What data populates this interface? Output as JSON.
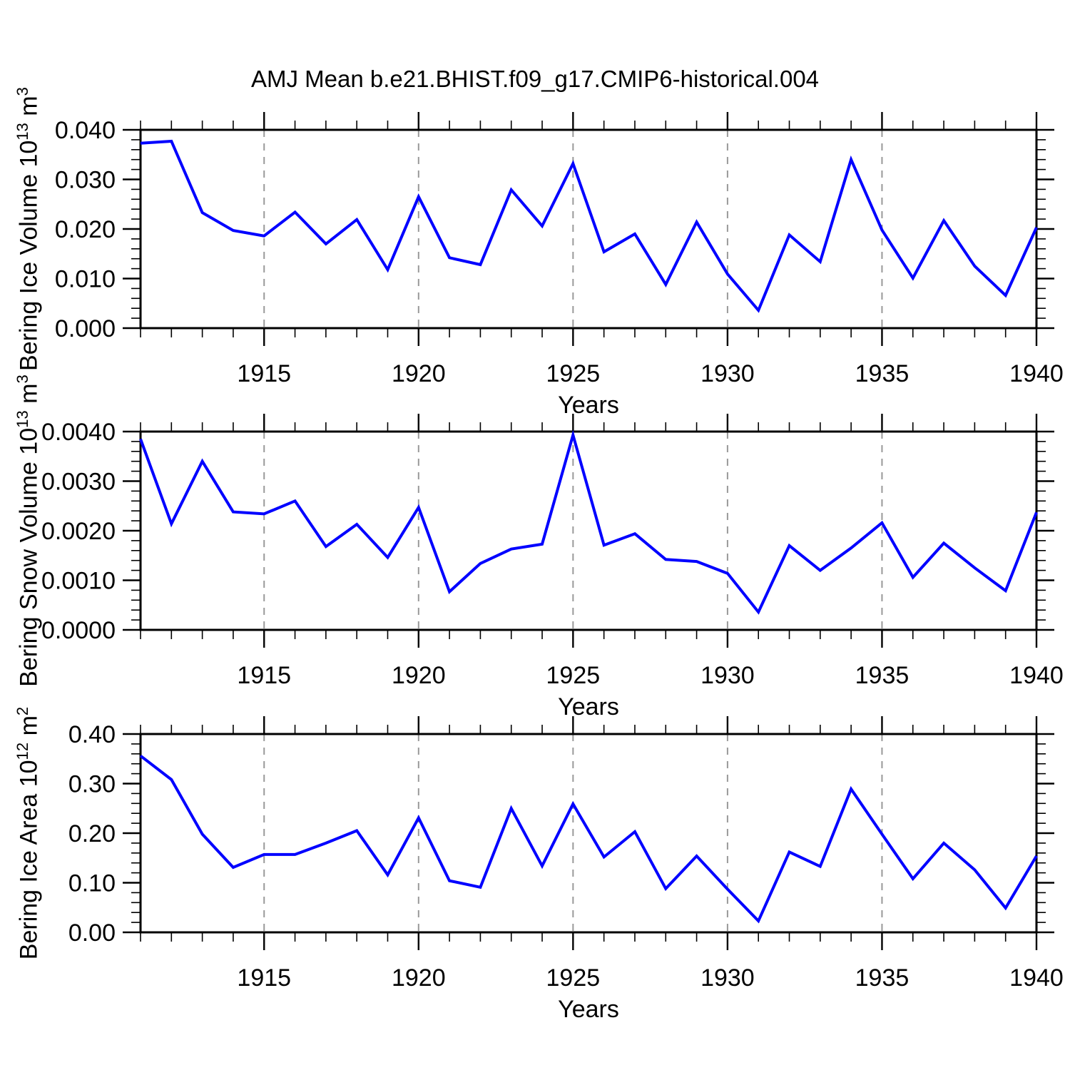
{
  "title": "AMJ Mean b.e21.BHIST.f09_g17.CMIP6-historical.004",
  "line_color": "#0000ff",
  "grid_color": "#999999",
  "chart_data": [
    {
      "type": "line",
      "ylabel": {
        "prefix": "Bering Ice Volume 10",
        "sup1": "13",
        "mid": " m",
        "sup2": "3"
      },
      "ylabel_plain": "Bering Ice Volume 10^13 m^3",
      "xlabel": "Years",
      "x": [
        1911,
        1912,
        1913,
        1914,
        1915,
        1916,
        1917,
        1918,
        1919,
        1920,
        1921,
        1922,
        1923,
        1924,
        1925,
        1926,
        1927,
        1928,
        1929,
        1930,
        1931,
        1932,
        1933,
        1934,
        1935,
        1936,
        1937,
        1938,
        1939,
        1940
      ],
      "values": [
        0.0373,
        0.0377,
        0.0233,
        0.0197,
        0.0186,
        0.0234,
        0.017,
        0.0219,
        0.0118,
        0.0265,
        0.0142,
        0.0128,
        0.0279,
        0.0206,
        0.0332,
        0.0154,
        0.019,
        0.0088,
        0.0214,
        0.0109,
        0.0036,
        0.0188,
        0.0134,
        0.034,
        0.0198,
        0.0101,
        0.0217,
        0.0125,
        0.0066,
        0.0203
      ],
      "xlim": [
        1911,
        1940
      ],
      "ylim": [
        0,
        0.04
      ],
      "y_major_step": 0.01,
      "y_minor_step": 0.002,
      "ytick_labels": [
        "0.000",
        "0.010",
        "0.020",
        "0.030",
        "0.040"
      ],
      "xticks_major": [
        1915,
        1920,
        1925,
        1930,
        1935,
        1940
      ],
      "xtick_labels": [
        "1915",
        "1920",
        "1925",
        "1930",
        "1935",
        "1940"
      ],
      "grid_years": [
        1915,
        1920,
        1925,
        1930,
        1935
      ],
      "grid_on": true,
      "legend_position": "none"
    },
    {
      "type": "line",
      "ylabel": {
        "prefix": "Bering Snow Volume 10",
        "sup1": "13",
        "mid": " m",
        "sup2": "3"
      },
      "ylabel_plain": "Bering Snow Volume 10^13 m^3",
      "xlabel": "Years",
      "x": [
        1911,
        1912,
        1913,
        1914,
        1915,
        1916,
        1917,
        1918,
        1919,
        1920,
        1921,
        1922,
        1923,
        1924,
        1925,
        1926,
        1927,
        1928,
        1929,
        1930,
        1931,
        1932,
        1933,
        1934,
        1935,
        1936,
        1937,
        1938,
        1939,
        1940
      ],
      "values": [
        0.00385,
        0.00214,
        0.0034,
        0.00238,
        0.00234,
        0.0026,
        0.00168,
        0.00213,
        0.00146,
        0.00247,
        0.00077,
        0.00134,
        0.00163,
        0.00173,
        0.00393,
        0.00171,
        0.00194,
        0.00142,
        0.00138,
        0.00114,
        0.00036,
        0.0017,
        0.0012,
        0.00165,
        0.00216,
        0.00106,
        0.00175,
        0.00125,
        0.00079,
        0.00237
      ],
      "xlim": [
        1911,
        1940
      ],
      "ylim": [
        0,
        0.004
      ],
      "y_major_step": 0.001,
      "y_minor_step": 0.0002,
      "ytick_labels": [
        "0.0000",
        "0.0010",
        "0.0020",
        "0.0030",
        "0.0040"
      ],
      "xticks_major": [
        1915,
        1920,
        1925,
        1930,
        1935,
        1940
      ],
      "xtick_labels": [
        "1915",
        "1920",
        "1925",
        "1930",
        "1935",
        "1940"
      ],
      "grid_years": [
        1915,
        1920,
        1925,
        1930,
        1935
      ],
      "grid_on": true,
      "legend_position": "none"
    },
    {
      "type": "line",
      "ylabel": {
        "prefix": "Bering Ice Area 10",
        "sup1": "12",
        "mid": " m",
        "sup2": "2"
      },
      "ylabel_plain": "Bering Ice Area 10^12 m^2",
      "xlabel": "Years",
      "x": [
        1911,
        1912,
        1913,
        1914,
        1915,
        1916,
        1917,
        1918,
        1919,
        1920,
        1921,
        1922,
        1923,
        1924,
        1925,
        1926,
        1927,
        1928,
        1929,
        1930,
        1931,
        1932,
        1933,
        1934,
        1935,
        1936,
        1937,
        1938,
        1939,
        1940
      ],
      "values": [
        0.356,
        0.308,
        0.198,
        0.131,
        0.157,
        0.157,
        0.18,
        0.205,
        0.116,
        0.231,
        0.104,
        0.091,
        0.25,
        0.134,
        0.259,
        0.152,
        0.203,
        0.088,
        0.154,
        0.087,
        0.023,
        0.162,
        0.133,
        0.289,
        0.198,
        0.108,
        0.18,
        0.126,
        0.049,
        0.154
      ],
      "xlim": [
        1911,
        1940
      ],
      "ylim": [
        0,
        0.4
      ],
      "y_major_step": 0.1,
      "y_minor_step": 0.02,
      "ytick_labels": [
        "0.00",
        "0.10",
        "0.20",
        "0.30",
        "0.40"
      ],
      "xticks_major": [
        1915,
        1920,
        1925,
        1930,
        1935,
        1940
      ],
      "xtick_labels": [
        "1915",
        "1920",
        "1925",
        "1930",
        "1935",
        "1940"
      ],
      "grid_years": [
        1915,
        1920,
        1925,
        1930,
        1935
      ],
      "grid_on": true,
      "legend_position": "none"
    }
  ]
}
